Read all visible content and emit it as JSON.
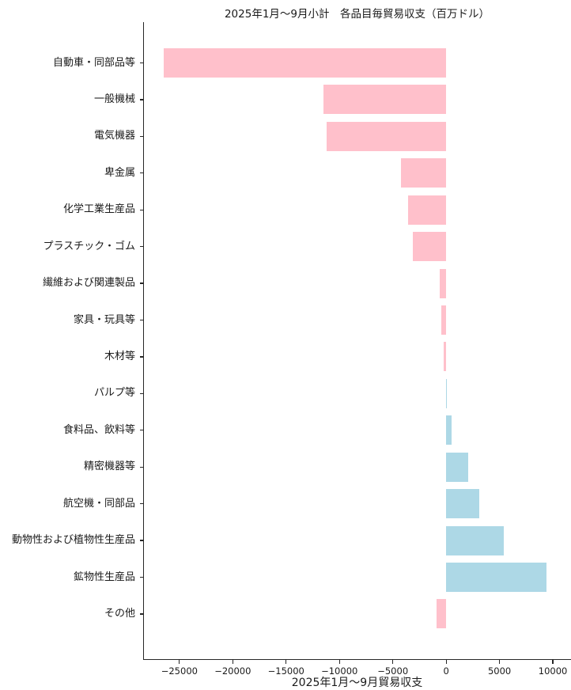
{
  "chart_data": {
    "type": "bar",
    "orientation": "horizontal",
    "title": "2025年1月～9月小計　各品目毎貿易収支（百万ドル）",
    "xlabel": "2025年1月～9月貿易収支",
    "ylabel": "",
    "unit": "百万ドル",
    "grid": false,
    "legend": null,
    "xlim": [
      -28400,
      11700
    ],
    "x_ticks": [
      -25000,
      -20000,
      -15000,
      -10000,
      -5000,
      0,
      5000,
      10000
    ],
    "x_tick_labels": [
      "−25000",
      "−20000",
      "−15000",
      "−10000",
      "−5000",
      "0",
      "5000",
      "10000"
    ],
    "categories": [
      "自動車・同部品等",
      "一般機械",
      "電気機器",
      "卑金属",
      "化学工業生産品",
      "プラスチック・ゴム",
      "繊維および関連製品",
      "家具・玩具等",
      "木材等",
      "パルプ等",
      "食料品、飲料等",
      "精密機器等",
      "航空機・同部品",
      "動物性および植物性生産品",
      "鉱物性生産品",
      "その他"
    ],
    "values": [
      -26500,
      -11500,
      -11200,
      -4200,
      -3600,
      -3100,
      -600,
      -420,
      -240,
      70,
      480,
      2050,
      3100,
      5400,
      9400,
      -900
    ],
    "colors": {
      "negative_bar": "#FFC0CB",
      "positive_bar": "#ADD8E6",
      "text": "#1a1a1a",
      "axis": "#262626",
      "background": "#ffffff"
    }
  }
}
